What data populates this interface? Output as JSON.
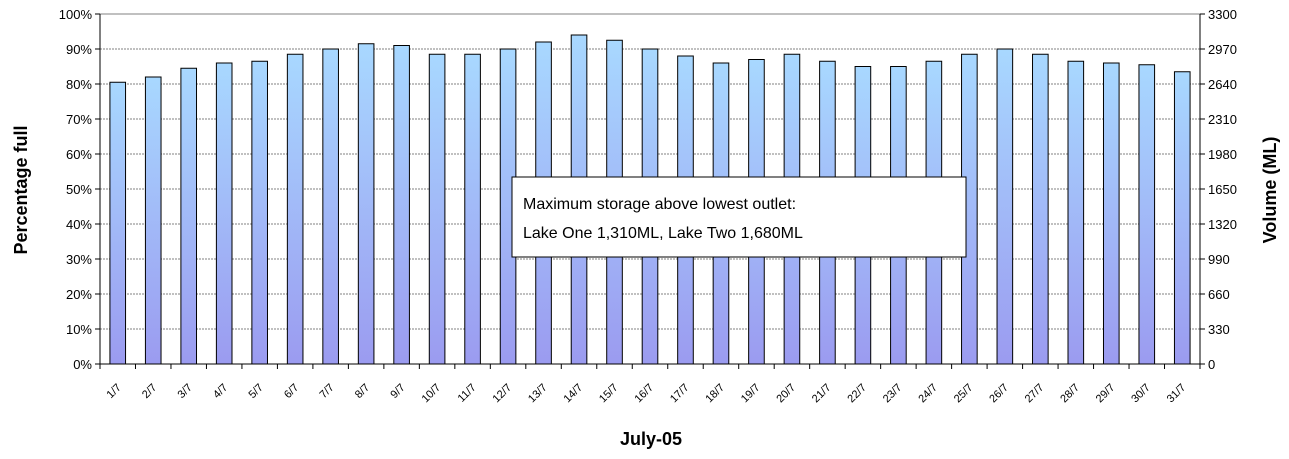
{
  "chart_data": {
    "type": "bar",
    "xlabel": "July-05",
    "ylabel_left": "Percentage full",
    "ylabel_right": "Volume (ML)",
    "ylim_left": [
      0,
      100
    ],
    "ylim_right": [
      0,
      3300
    ],
    "left_ticks": [
      "0%",
      "10%",
      "20%",
      "30%",
      "40%",
      "50%",
      "60%",
      "70%",
      "80%",
      "90%",
      "100%"
    ],
    "right_ticks": [
      "0",
      "330",
      "660",
      "990",
      "1320",
      "1650",
      "1980",
      "2310",
      "2640",
      "2970",
      "3300"
    ],
    "grid": true,
    "categories": [
      "1/7",
      "2/7",
      "3/7",
      "4/7",
      "5/7",
      "6/7",
      "7/7",
      "8/7",
      "9/7",
      "10/7",
      "11/7",
      "12/7",
      "13/7",
      "14/7",
      "15/7",
      "16/7",
      "17/7",
      "18/7",
      "19/7",
      "20/7",
      "21/7",
      "22/7",
      "23/7",
      "24/7",
      "25/7",
      "26/7",
      "27/7",
      "28/7",
      "29/7",
      "30/7",
      "31/7"
    ],
    "values": [
      80.5,
      82.0,
      84.5,
      86.0,
      86.5,
      88.5,
      90.0,
      91.5,
      91.0,
      88.5,
      88.5,
      90.0,
      92.0,
      94.0,
      92.5,
      90.0,
      88.0,
      86.0,
      87.0,
      88.5,
      86.5,
      85.0,
      85.0,
      86.5,
      88.5,
      90.0,
      88.5,
      86.5,
      86.0,
      85.5,
      83.5
    ],
    "annotation": {
      "line1": "Maximum storage above lowest outlet:",
      "line2": "Lake One 1,310ML, Lake Two 1,680ML"
    },
    "colors": {
      "bar_top": "#a8d8ff",
      "bar_bottom": "#9b9bf0",
      "bar_stroke": "#000000",
      "grid": "#808080"
    }
  }
}
